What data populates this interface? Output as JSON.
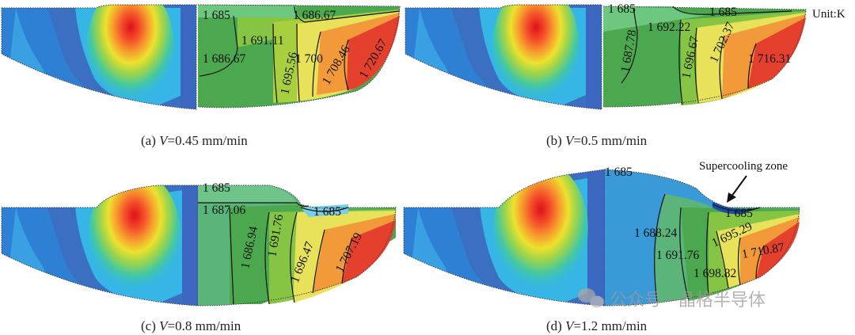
{
  "unit_label": "Unit:K",
  "annotation": "Supercooling zone",
  "watermark": "公众号 · 晶格半导体",
  "panels": [
    {
      "caption_prefix": "(a) ",
      "var": "V",
      "caption_value": "=0.45 mm/min",
      "labels": [
        "1 685",
        "1 686.67",
        "1 691.11",
        "1 686.67",
        "1 695.56",
        "1 700",
        "1 708.46",
        "1 720.67"
      ]
    },
    {
      "caption_prefix": "(b) ",
      "var": "V",
      "caption_value": "=0.5 mm/min",
      "labels": [
        "1 685",
        "1 685",
        "1 692.22",
        "1 687.78",
        "1 696.67",
        "1 702.37",
        "1 716.31"
      ]
    },
    {
      "caption_prefix": "(c) ",
      "var": "V",
      "caption_value": "=0.8 mm/min",
      "labels": [
        "1 685",
        "1 687.06",
        "1 686.94",
        "1 691.76",
        "1 685",
        "1 696.47",
        "1 707.19"
      ]
    },
    {
      "caption_prefix": "(d) ",
      "var": "V",
      "caption_value": "=1.2 mm/min",
      "labels": [
        "1 685",
        "1 685",
        "1 688.24",
        "1 695.29",
        "1 691.76",
        "1 710.87",
        "1 698.82"
      ]
    }
  ]
}
